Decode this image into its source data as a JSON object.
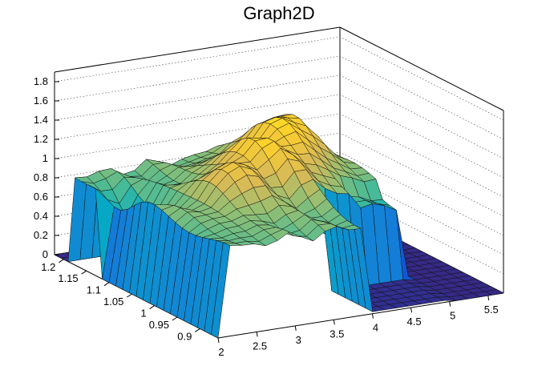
{
  "chart_data": {
    "type": "surface",
    "title": "Graph2D",
    "xlabel": "",
    "ylabel": "",
    "zlabel": "",
    "x_ticks": [
      "2",
      "2.5",
      "3",
      "3.5",
      "4",
      "4.5",
      "5",
      "5.5"
    ],
    "y_ticks": [
      "0.9",
      "0.95",
      "1",
      "1.05",
      "1.1",
      "1.15",
      "1.2"
    ],
    "z_ticks": [
      "0",
      "0.2",
      "0.4",
      "0.6",
      "0.8",
      "1",
      "1.2",
      "1.4",
      "1.6",
      "1.8"
    ],
    "xlim": [
      2,
      5.7
    ],
    "ylim": [
      0.86,
      1.22
    ],
    "zlim": [
      0,
      1.9
    ],
    "grid": true,
    "palette": [
      "#352a87",
      "#0f5cdd",
      "#1481d6",
      "#06a7c6",
      "#38b99e",
      "#92bf73",
      "#d9ba56",
      "#fcce2e",
      "#f9fb0e"
    ],
    "surface_description_points": [
      {
        "x": 2.0,
        "y": 1.2,
        "z": 0.0
      },
      {
        "x": 2.0,
        "y": 1.15,
        "z": 0.75
      },
      {
        "x": 2.3,
        "y": 1.1,
        "z": 0.95
      },
      {
        "x": 2.8,
        "y": 1.0,
        "z": 1.0
      },
      {
        "x": 3.2,
        "y": 1.0,
        "z": 1.3
      },
      {
        "x": 3.6,
        "y": 1.05,
        "z": 1.4
      },
      {
        "x": 4.2,
        "y": 1.1,
        "z": 1.5
      },
      {
        "x": 4.4,
        "y": 1.0,
        "z": 1.1
      },
      {
        "x": 5.0,
        "y": 0.95,
        "z": 0.0
      }
    ]
  }
}
